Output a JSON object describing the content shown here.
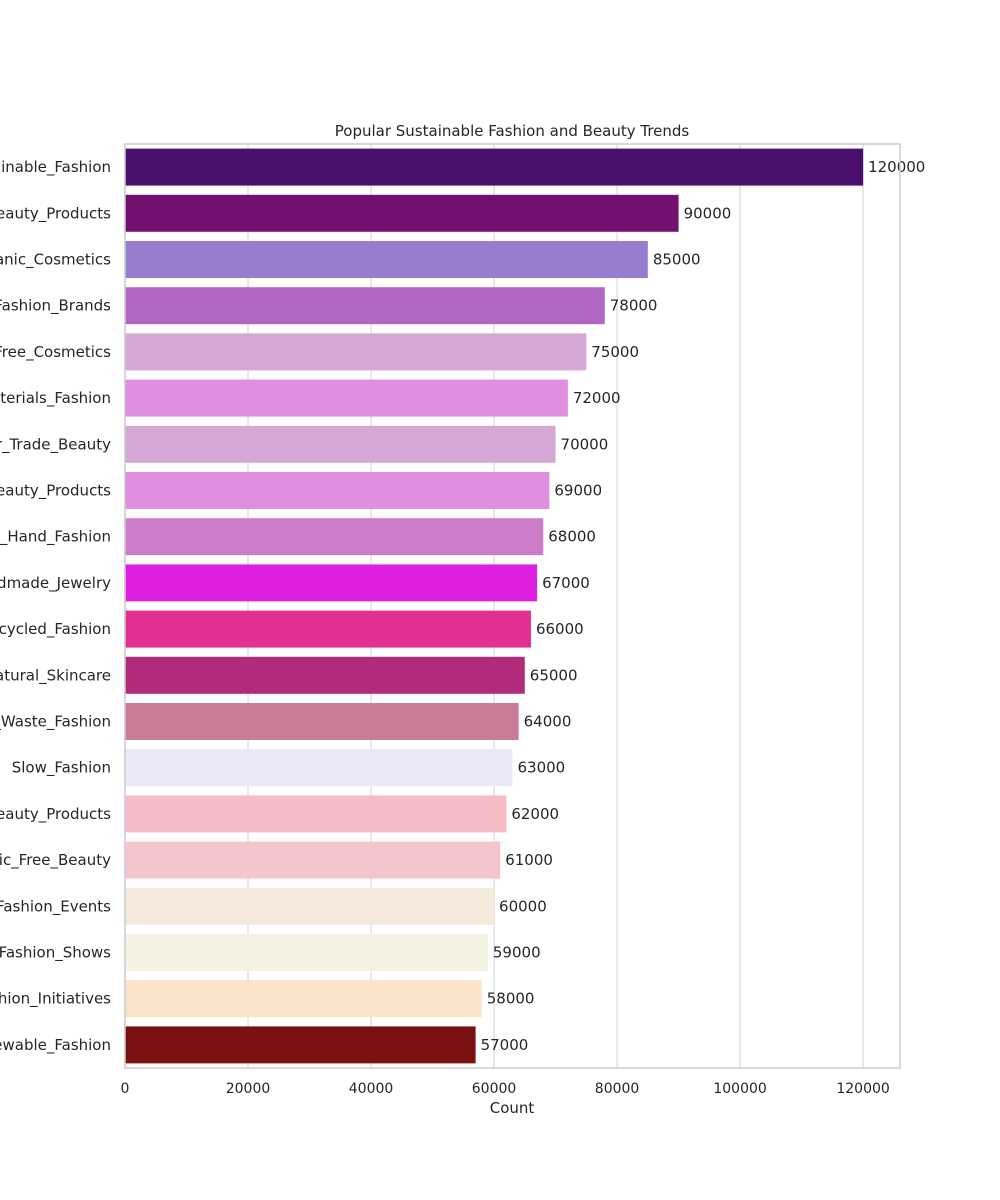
{
  "chart_data": {
    "type": "bar",
    "orientation": "horizontal",
    "title": "Popular Sustainable Fashion and Beauty Trends",
    "xlabel": "Count",
    "ylabel": "",
    "xlim": [
      0,
      126000
    ],
    "x_ticks": [
      0,
      20000,
      40000,
      60000,
      80000,
      100000,
      120000
    ],
    "x_tick_labels": [
      "0",
      "20000",
      "40000",
      "60000",
      "80000",
      "100000",
      "120000"
    ],
    "grid": "vertical",
    "categories": [
      "ainable_Fashion",
      "Beauty_Products",
      "ganic_Cosmetics",
      "Fashion_Brands",
      "Free_Cosmetics",
      "aterials_Fashion",
      "ir_Trade_Beauty",
      "Beauty_Products",
      "d_Hand_Fashion",
      "ndmade_Jewelry",
      "pcycled_Fashion",
      "Natural_Skincare",
      "_Waste_Fashion",
      "Slow_Fashion",
      "Beauty_Products",
      "tic_Free_Beauty",
      "_Fashion_Events",
      "_Fashion_Shows",
      "ashion_Initiatives",
      "ewable_Fashion"
    ],
    "values": [
      120000,
      90000,
      85000,
      78000,
      75000,
      72000,
      70000,
      69000,
      68000,
      67000,
      66000,
      65000,
      64000,
      63000,
      62000,
      61000,
      60000,
      59000,
      58000,
      57000
    ],
    "value_labels": [
      "120000",
      "90000",
      "85000",
      "78000",
      "75000",
      "72000",
      "70000",
      "69000",
      "68000",
      "67000",
      "66000",
      "65000",
      "64000",
      "63000",
      "62000",
      "61000",
      "60000",
      "59000",
      "58000",
      "57000"
    ],
    "colors": [
      "#4b0f6e",
      "#730f6e",
      "#967dcf",
      "#b066c2",
      "#d5a7d5",
      "#e08ee0",
      "#d5a7d5",
      "#e08ee0",
      "#cc7cc8",
      "#df1fe0",
      "#e23092",
      "#b22a7c",
      "#cc7b97",
      "#e8e8f6",
      "#f5bcc6",
      "#f6c4cd",
      "#f4e9db",
      "#f3f2e2",
      "#f9e3c9",
      "#7a1010"
    ]
  }
}
